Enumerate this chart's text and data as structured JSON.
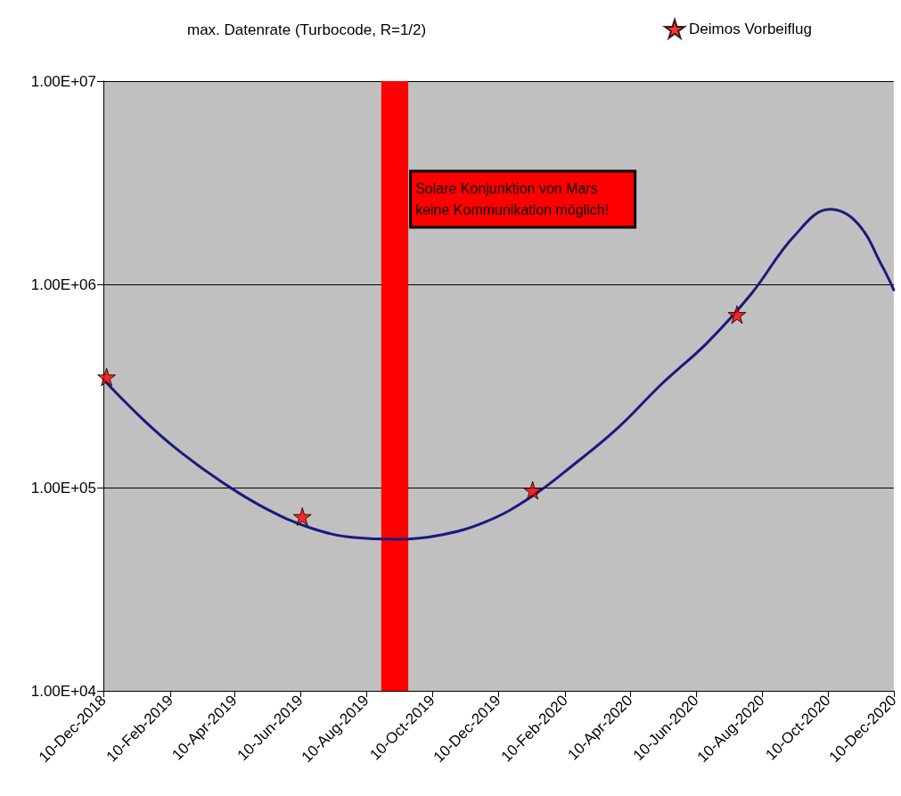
{
  "chart_data": {
    "type": "line",
    "title": "max. Datenrate (Turbocode, R=1/2)",
    "log": "y",
    "grid": "y",
    "legend": "top right",
    "xlim": [
      "2018-12-10",
      "2020-12-10"
    ],
    "xticks": [
      {
        "value": "2018-12-10",
        "label": "10-Dec-2018"
      },
      {
        "value": "2019-02-10",
        "label": "10-Feb-2019"
      },
      {
        "value": "2019-04-10",
        "label": "10-Apr-2019"
      },
      {
        "value": "2019-06-10",
        "label": "10-Jun-2019"
      },
      {
        "value": "2019-08-10",
        "label": "10-Aug-2019"
      },
      {
        "value": "2019-10-10",
        "label": "10-Oct-2019"
      },
      {
        "value": "2019-12-10",
        "label": "10-Dec-2019"
      },
      {
        "value": "2020-02-10",
        "label": "10-Feb-2020"
      },
      {
        "value": "2020-04-10",
        "label": "10-Apr-2020"
      },
      {
        "value": "2020-06-10",
        "label": "10-Jun-2020"
      },
      {
        "value": "2020-08-10",
        "label": "10-Aug-2020"
      },
      {
        "value": "2020-10-10",
        "label": "10-Oct-2020"
      },
      {
        "value": "2020-12-10",
        "label": "10-Dec-2020"
      }
    ],
    "ylim": [
      10000,
      10000000
    ],
    "yticks": [
      {
        "value": 10000,
        "label": "1.00E+04"
      },
      {
        "value": 100000,
        "label": "1.00E+05"
      },
      {
        "value": 1000000,
        "label": "1.00E+06"
      },
      {
        "value": 10000000,
        "label": "1.00E+07"
      }
    ],
    "bands": [
      {
        "axis": "x",
        "from": "2019-08-24",
        "to": "2019-09-18",
        "color": "#ff0000",
        "label": "Solare Konjunktion von Mars\nkeine Kommunikation möglich!"
      }
    ],
    "series": [
      {
        "color": "#1a1a80",
        "marker": "none",
        "line_style": "solid",
        "x": [
          "2018-12-10",
          "2019-01-15",
          "2019-02-17",
          "2019-03-29",
          "2019-05-09",
          "2019-06-19",
          "2019-07-30",
          "2019-09-08",
          "2019-10-19",
          "2019-11-29",
          "2020-01-09",
          "2020-02-19",
          "2020-03-30",
          "2020-05-10",
          "2020-06-20",
          "2020-07-31",
          "2020-09-09",
          "2020-10-12",
          "2020-11-06",
          "2020-11-30",
          "2020-12-10"
        ],
        "values": [
          340000,
          218000,
          153000,
          107000,
          79000,
          63500,
          56800,
          55700,
          58600,
          68000,
          89500,
          131000,
          197000,
          326000,
          513000,
          895000,
          1730000,
          2340000,
          2010000,
          1210000,
          940000
        ]
      },
      {
        "type": "scatter",
        "name": "Deimos Vorbeiflug",
        "color": "#ff0000",
        "marker": "star",
        "x": [
          "2018-12-13",
          "2019-06-12",
          "2020-01-11",
          "2020-07-18"
        ],
        "values": [
          350000,
          72000,
          97000,
          710000
        ]
      }
    ]
  }
}
